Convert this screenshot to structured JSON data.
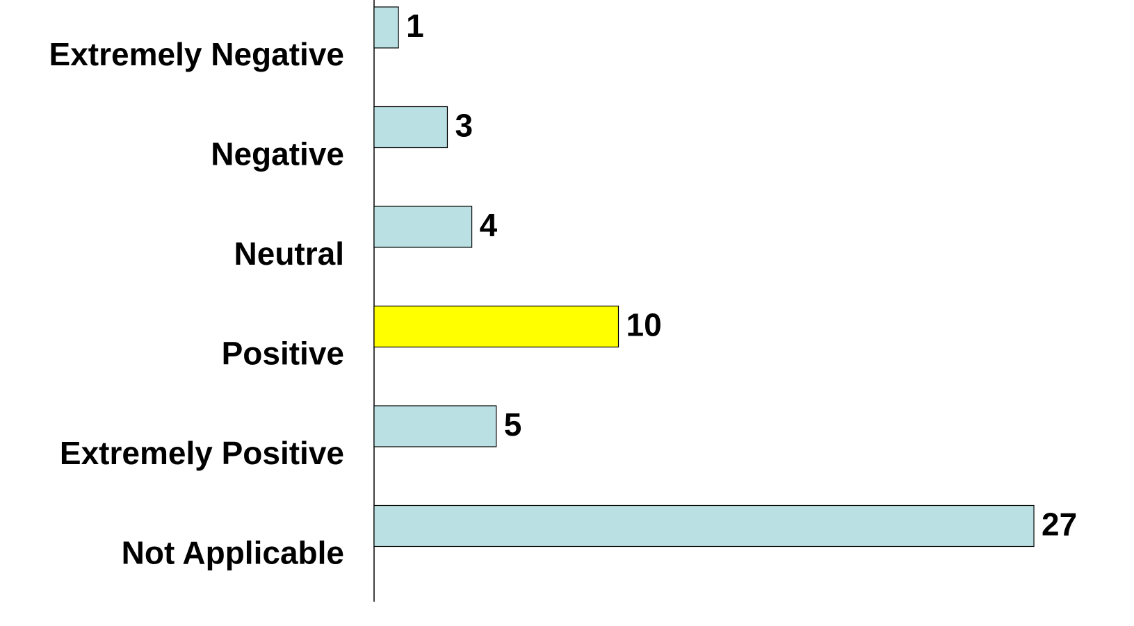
{
  "chart_data": {
    "type": "barh",
    "categories": [
      "Extremely Negative",
      "Negative",
      "Neutral",
      "Positive",
      "Extremely Positive",
      "Not Applicable"
    ],
    "values": [
      1,
      3,
      4,
      10,
      5,
      27
    ],
    "colors": [
      "#bbe0e3",
      "#bbe0e3",
      "#bbe0e3",
      "#ffff00",
      "#bbe0e3",
      "#bbe0e3"
    ],
    "grid": false
  }
}
